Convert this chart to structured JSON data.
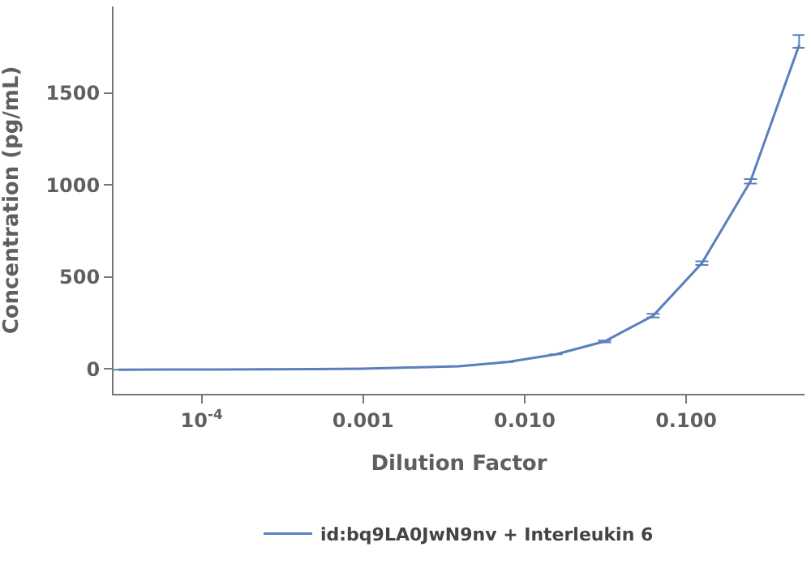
{
  "chart_data": {
    "type": "line",
    "xlabel": "Dilution Factor",
    "ylabel": "Concentration (pg/mL)",
    "log": "x",
    "x": [
      0.5,
      0.25,
      0.125,
      0.0625,
      0.03125,
      0.015625,
      0.0078125,
      0.00390625,
      0.001953125,
      0.0009765625,
      0.00048828125,
      0.000244140625,
      0.0001220703125,
      6.103515625e-05,
      3.0517578125e-05
    ],
    "series": [
      {
        "name": "id:bq9LA0JwN9nv + Interleukin 6",
        "color": "#5b7fbc",
        "values": [
          1760,
          1020,
          575,
          290,
          150,
          80,
          38,
          15,
          8,
          2,
          -1,
          -2,
          -3,
          -3,
          -4
        ],
        "errors": [
          [
            1745,
            1815
          ],
          12,
          10,
          10,
          5,
          null,
          null,
          null,
          null,
          null,
          null,
          null,
          null,
          null,
          null
        ]
      }
    ],
    "xlim": [
      2.85e-05,
      0.54
    ],
    "xticks": [
      {
        "value": 0.0001,
        "label": "10$^{-4}$"
      },
      {
        "value": 0.001,
        "label": "0.001"
      },
      {
        "value": 0.01,
        "label": "0.010"
      },
      {
        "value": 0.1,
        "label": "0.100"
      }
    ],
    "ylim": [
      -135,
      1970
    ],
    "yticks": [
      0,
      500,
      1000,
      1500
    ],
    "legend": "bottom",
    "marker": "none",
    "line_style": "solid"
  }
}
